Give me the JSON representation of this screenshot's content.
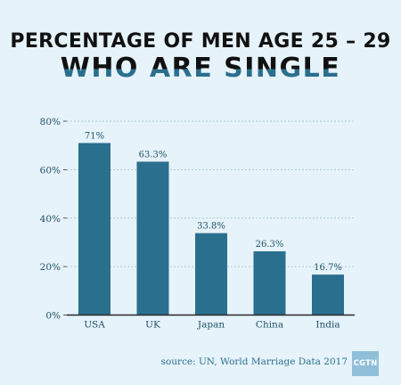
{
  "title_line1": "PERCENTAGE OF MEN AGE 25 – 29",
  "title_line2": "WHO ARE SINGLE",
  "source": "source: UN, World Marriage Data 2017",
  "logo_text": "CGTN",
  "colors": {
    "background": "#e6f3fa",
    "bar": "#2b6f8e",
    "label": "#1f4f66",
    "axis": "#2a2a2a",
    "grid": "#9dbdcc"
  },
  "chart_data": {
    "type": "bar",
    "categories": [
      "USA",
      "UK",
      "Japan",
      "China",
      "India"
    ],
    "values": [
      71,
      63.3,
      33.8,
      26.3,
      16.7
    ],
    "value_labels": [
      "71%",
      "63.3%",
      "33.8%",
      "26.3%",
      "16.7%"
    ],
    "y_ticks": [
      "0%",
      "20%",
      "40%",
      "60%",
      "80%"
    ],
    "tick_values": [
      0,
      20,
      40,
      60,
      80
    ],
    "ylim": [
      0,
      80
    ],
    "grid": true,
    "title": "PERCENTAGE OF MEN AGE 25 – 29 WHO ARE SINGLE",
    "xlabel": "",
    "ylabel": ""
  }
}
